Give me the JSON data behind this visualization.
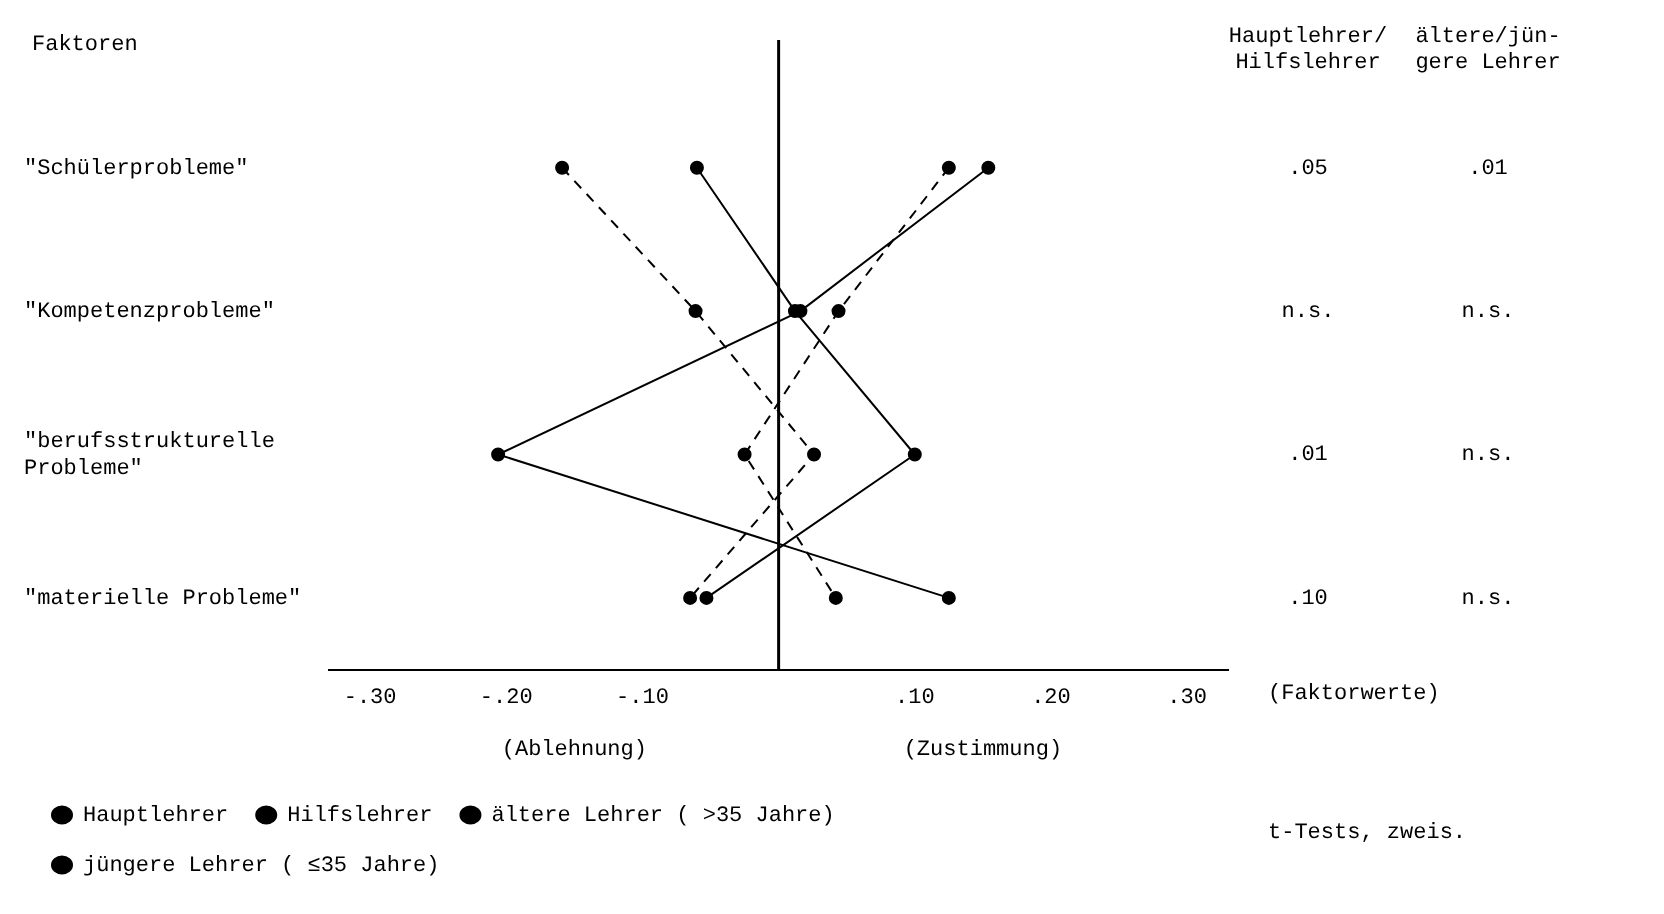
{
  "chart_data": {
    "type": "line",
    "orientation": "horizontal",
    "ylabel": "Faktoren",
    "xlabel": "(Faktorwerte)",
    "categories": [
      "\"Schülerprobleme\"",
      "\"Kompetenzprobleme\"",
      "\"berufsstrukturelle Probleme\"",
      "\"materielle Probleme\""
    ],
    "series": [
      {
        "name": "Hauptlehrer",
        "color": "#000000",
        "line_style": "solid",
        "values": [
          -0.06,
          0.012,
          0.1,
          -0.053
        ]
      },
      {
        "name": "Hilfslehrer",
        "color": "#000000",
        "line_style": "solid",
        "values": [
          0.154,
          0.016,
          -0.206,
          0.125
        ]
      },
      {
        "name": "ältere Lehrer ( >35 Jahre)",
        "color": "#000000",
        "line_style": "dashed",
        "values": [
          -0.159,
          -0.061,
          0.026,
          -0.065
        ]
      },
      {
        "name": "jüngere Lehrer ( ≤35 Jahre)",
        "color": "#000000",
        "line_style": "dashed",
        "values": [
          0.125,
          0.044,
          -0.025,
          0.042
        ]
      }
    ],
    "xlim": [
      -0.33,
      0.33
    ],
    "xticks": [
      {
        "value": -0.3,
        "label": "-.30"
      },
      {
        "value": -0.2,
        "label": "-.20"
      },
      {
        "value": -0.1,
        "label": "-.10"
      },
      {
        "value": 0.1,
        "label": ".10"
      },
      {
        "value": 0.2,
        "label": ".20"
      },
      {
        "value": 0.3,
        "label": ".30"
      }
    ],
    "ref_lines": [
      {
        "axis": "x",
        "value": 0,
        "color": "#000000"
      }
    ],
    "annotations": [
      "Hauptlehrer/ Hilfslehrer",
      "ältere/jün- gere Lehrer",
      ".05",
      ".01",
      "n.s.",
      "n.s.",
      ".01",
      "n.s.",
      ".10",
      "n.s.",
      "(Ablehnung)",
      "(Zustimmung)",
      "t-Tests, zweis."
    ],
    "marker": "circle",
    "grid": false,
    "legend": "bottom"
  }
}
